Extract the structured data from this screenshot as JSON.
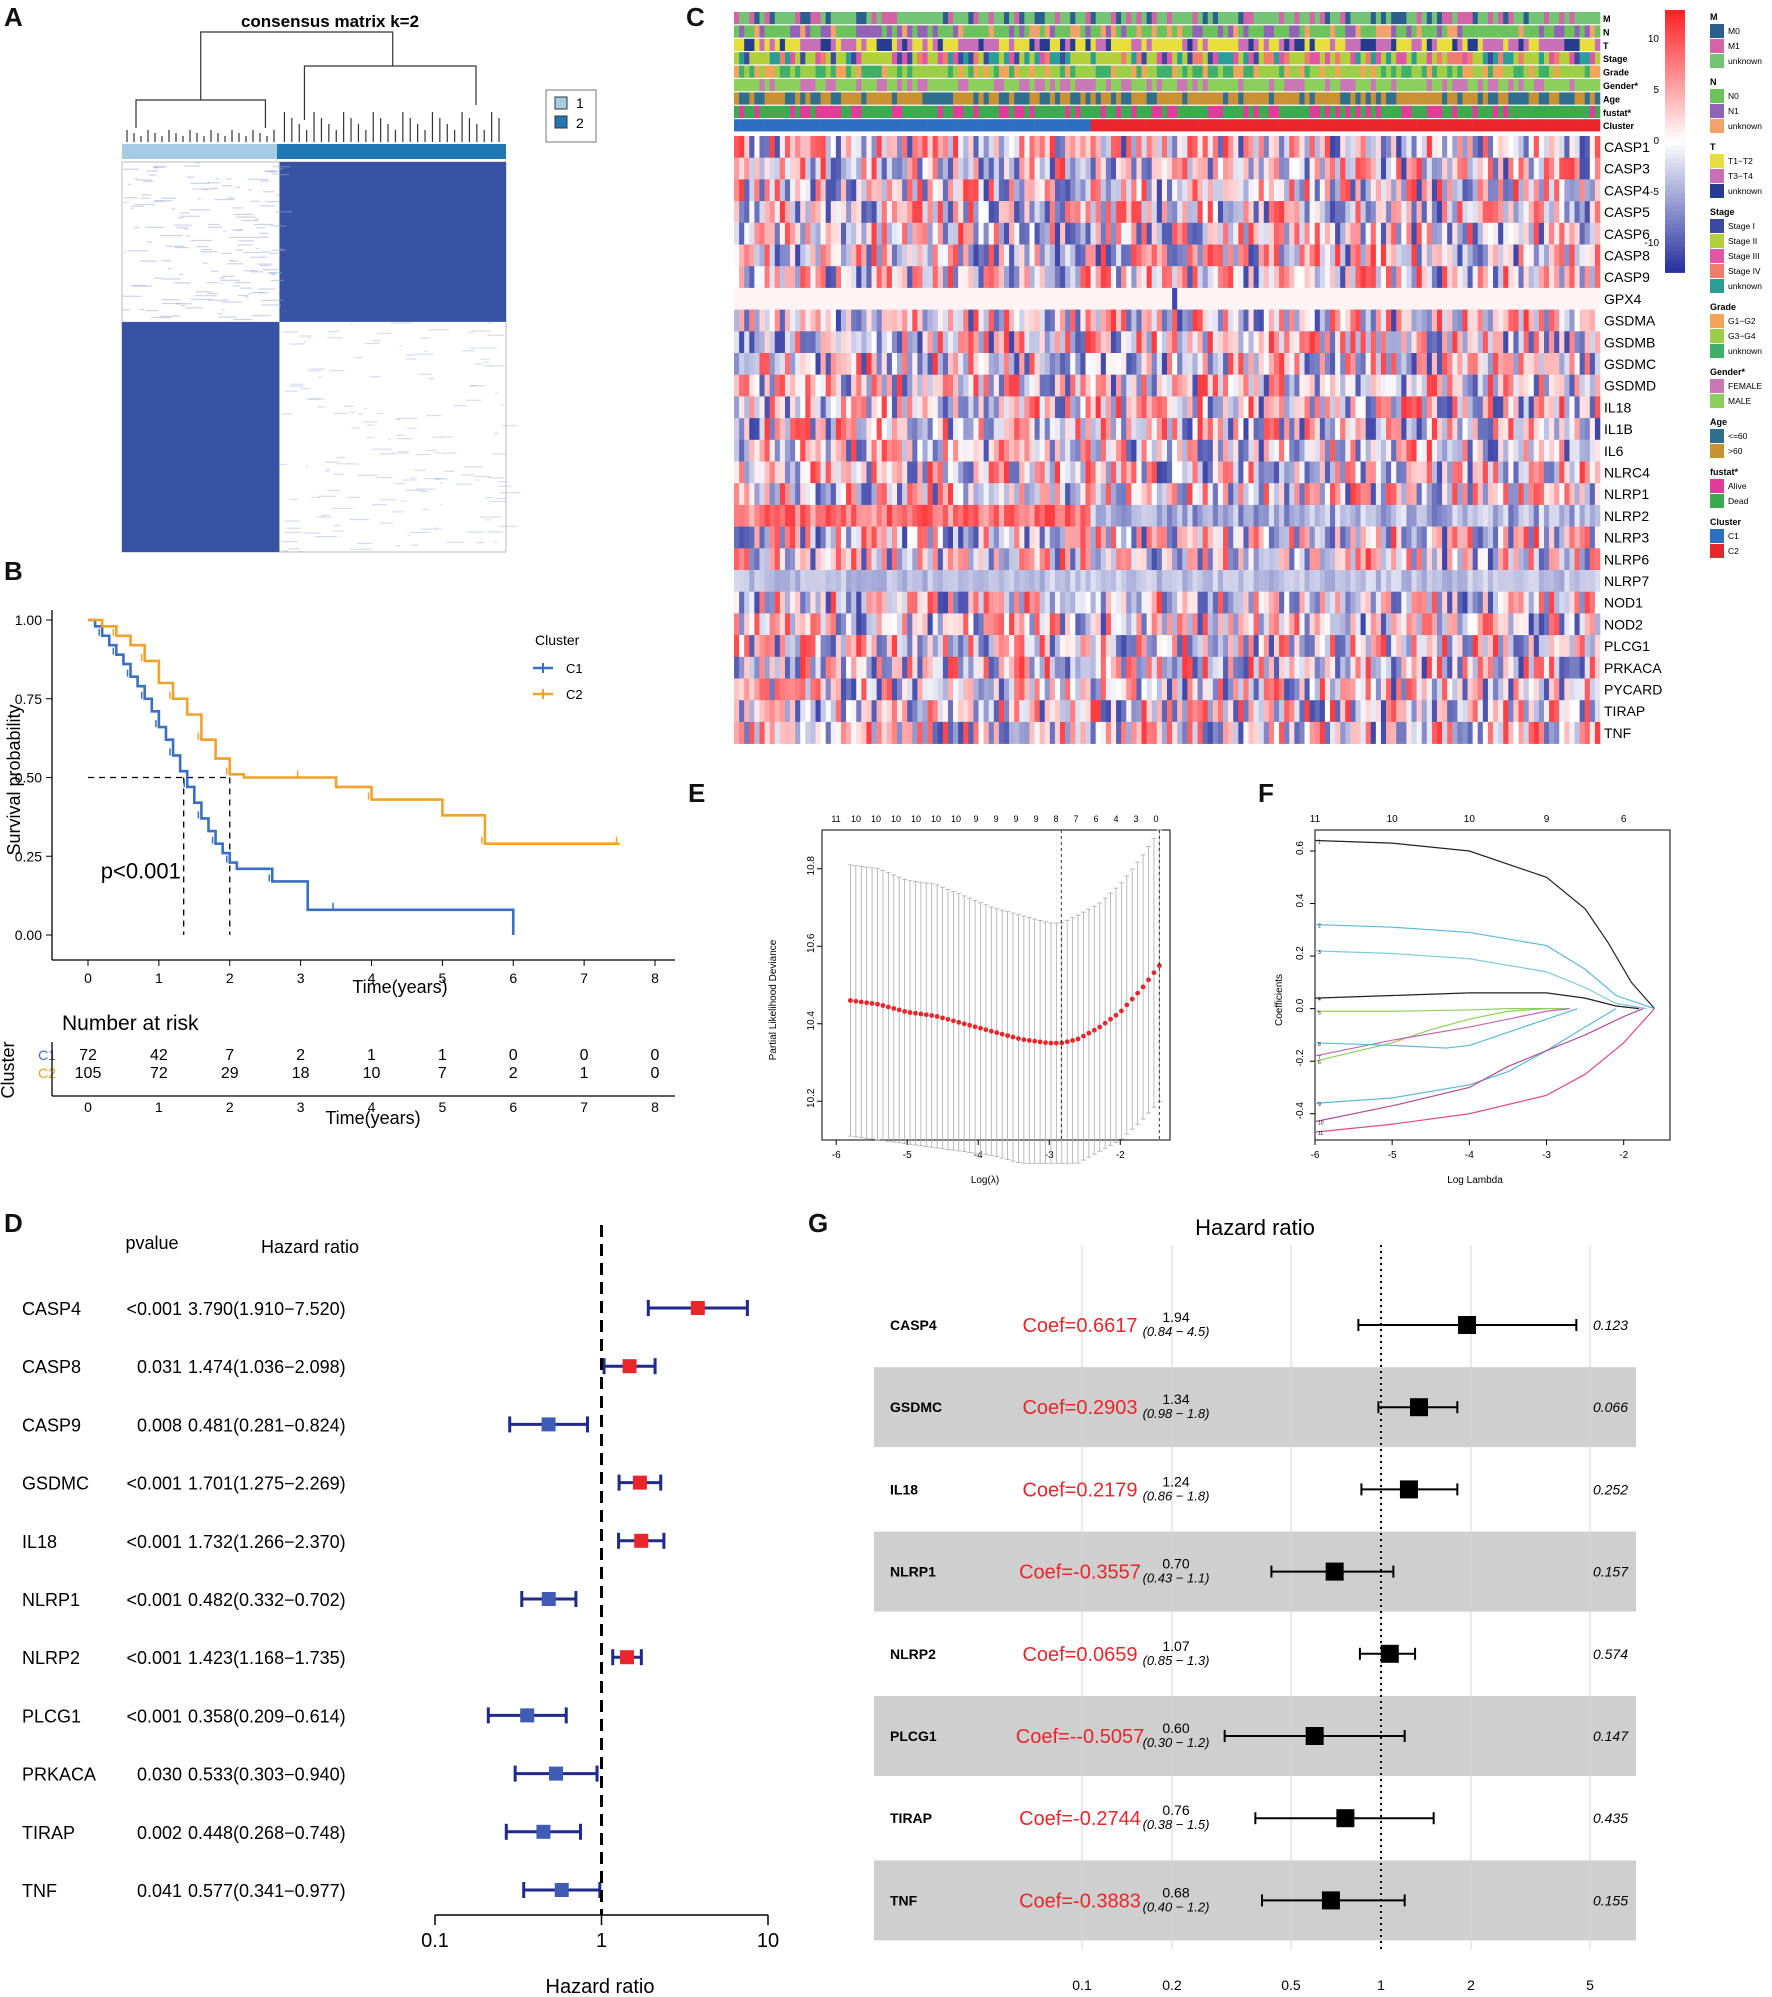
{
  "panels": {
    "A": "A",
    "B": "B",
    "C": "C",
    "D": "D",
    "E": "E",
    "F": "F",
    "G": "G"
  },
  "chart_data": [
    {
      "id": "A",
      "type": "heatmap",
      "title": "consensus matrix k=2",
      "legend": [
        "1",
        "2"
      ],
      "colors": {
        "cluster1": "#a6cce3",
        "cluster2": "#1f78b4",
        "matrix": "#3953a4"
      },
      "blocks": [
        {
          "rows": [
            0,
            0.41
          ],
          "cols": [
            0.41,
            1
          ],
          "value": 1
        },
        {
          "rows": [
            0.41,
            1
          ],
          "cols": [
            0,
            0.41
          ],
          "value": 1
        }
      ]
    },
    {
      "id": "B",
      "type": "line",
      "xlabel": "Time(years)",
      "ylabel": "Survival probability",
      "xlim": [
        0,
        8
      ],
      "ylim": [
        0,
        1
      ],
      "xticks": [
        "0",
        "1",
        "2",
        "3",
        "4",
        "5",
        "6",
        "7",
        "8"
      ],
      "yticks": [
        "0.00",
        "0.25",
        "0.50",
        "0.75",
        "1.00"
      ],
      "legend_title": "Cluster",
      "pvalue_text": "p<0.001",
      "series": [
        {
          "name": "C1",
          "color": "#3a6fc4",
          "x": [
            0,
            0.1,
            0.2,
            0.3,
            0.4,
            0.5,
            0.6,
            0.7,
            0.8,
            0.9,
            1.0,
            1.1,
            1.2,
            1.3,
            1.4,
            1.5,
            1.6,
            1.7,
            1.8,
            1.9,
            2.0,
            2.1,
            2.6,
            3.1,
            3.5,
            6.0
          ],
          "y": [
            1.0,
            0.98,
            0.95,
            0.92,
            0.89,
            0.86,
            0.82,
            0.79,
            0.75,
            0.71,
            0.66,
            0.62,
            0.57,
            0.52,
            0.47,
            0.42,
            0.37,
            0.33,
            0.29,
            0.26,
            0.23,
            0.21,
            0.17,
            0.08,
            0.08,
            0.0
          ]
        },
        {
          "name": "C2",
          "color": "#f0a22b",
          "x": [
            0,
            0.2,
            0.4,
            0.6,
            0.8,
            1.0,
            1.2,
            1.4,
            1.6,
            1.8,
            2.0,
            2.2,
            3.0,
            3.5,
            4.0,
            5.0,
            5.6,
            6.5,
            7.5
          ],
          "y": [
            1.0,
            0.98,
            0.95,
            0.92,
            0.87,
            0.8,
            0.75,
            0.7,
            0.62,
            0.56,
            0.51,
            0.5,
            0.5,
            0.47,
            0.43,
            0.38,
            0.29,
            0.29,
            0.29
          ]
        }
      ],
      "median_lines": [
        {
          "x": 1.35
        },
        {
          "x": 2.0
        }
      ],
      "risk_table": {
        "title": "Number at risk",
        "ylabel": "Cluster",
        "xlabel": "Time(years)",
        "rows": [
          {
            "label": "C1",
            "color": "#3a6fc4",
            "values": [
              "72",
              "42",
              "7",
              "2",
              "1",
              "1",
              "0",
              "0",
              "0"
            ]
          },
          {
            "label": "C2",
            "color": "#f0a22b",
            "values": [
              "105",
              "72",
              "29",
              "18",
              "10",
              "7",
              "2",
              "1",
              "0"
            ]
          }
        ]
      }
    },
    {
      "id": "C",
      "type": "heatmap",
      "genes": [
        "CASP1",
        "CASP3",
        "CASP4",
        "CASP5",
        "CASP6",
        "CASP8",
        "CASP9",
        "GPX4",
        "GSDMA",
        "GSDMB",
        "GSDMC",
        "GSDMD",
        "IL18",
        "IL1B",
        "IL6",
        "NLRC4",
        "NLRP1",
        "NLRP2",
        "NLRP3",
        "NLRP6",
        "NLRP7",
        "NOD1",
        "NOD2",
        "PLCG1",
        "PRKACA",
        "PYCARD",
        "TIRAP",
        "TNF"
      ],
      "annotation_rows": [
        "M",
        "N",
        "T",
        "Stage",
        "Grade",
        "Gender*",
        "Age",
        "fustat*",
        "Cluster"
      ],
      "colorbar_ticks": [
        "10",
        "5",
        "0",
        "-5",
        "-10"
      ],
      "cluster_split": 0.41,
      "legend": [
        {
          "title": "M",
          "items": [
            {
              "label": "M0",
              "color": "#2b5f8f"
            },
            {
              "label": "M1",
              "color": "#d563a8"
            },
            {
              "label": "unknown",
              "color": "#74c476"
            }
          ]
        },
        {
          "title": "N",
          "items": [
            {
              "label": "N0",
              "color": "#6cc25c"
            },
            {
              "label": "N1",
              "color": "#9262b6"
            },
            {
              "label": "unknown",
              "color": "#f2a26a"
            }
          ]
        },
        {
          "title": "T",
          "items": [
            {
              "label": "T1−T2",
              "color": "#e6de3a"
            },
            {
              "label": "T3−T4",
              "color": "#c86fb8"
            },
            {
              "label": "unknown",
              "color": "#263c8f"
            }
          ]
        },
        {
          "title": "Stage",
          "items": [
            {
              "label": "Stage I",
              "color": "#3b4aa0"
            },
            {
              "label": "Stage II",
              "color": "#b2cf3c"
            },
            {
              "label": "Stage III",
              "color": "#e055a4"
            },
            {
              "label": "Stage IV",
              "color": "#f07d6b"
            },
            {
              "label": "unknown",
              "color": "#2a9d96"
            }
          ]
        },
        {
          "title": "Grade",
          "items": [
            {
              "label": "G1−G2",
              "color": "#f4a35a"
            },
            {
              "label": "G3−G4",
              "color": "#9dce47"
            },
            {
              "label": "unknown",
              "color": "#3fb06a"
            }
          ]
        },
        {
          "title": "Gender*",
          "items": [
            {
              "label": "FEMALE",
              "color": "#c977b5"
            },
            {
              "label": "MALE",
              "color": "#8ccf5c"
            }
          ]
        },
        {
          "title": "Age",
          "items": [
            {
              "label": "<=60",
              "color": "#2d6f8c"
            },
            {
              "label": ">60",
              "color": "#c99132"
            }
          ]
        },
        {
          "title": "fustat*",
          "items": [
            {
              "label": "Alive",
              "color": "#e23b9a"
            },
            {
              "label": "Dead",
              "color": "#3caa4f"
            }
          ]
        },
        {
          "title": "Cluster",
          "items": [
            {
              "label": "C1",
              "color": "#2c6fc0"
            },
            {
              "label": "C2",
              "color": "#e8262b"
            }
          ]
        }
      ]
    },
    {
      "id": "D",
      "type": "scatter",
      "columns": {
        "pvalue": "pvalue",
        "hr": "Hazard ratio"
      },
      "xlabel": "Hazard ratio",
      "xticks": [
        "0.1",
        "1",
        "10"
      ],
      "xlim": [
        0.1,
        10
      ],
      "rows": [
        {
          "gene": "CASP4",
          "pvalue": "<0.001",
          "hr_text": "3.790(1.910−7.520)",
          "hr": 3.79,
          "lo": 1.91,
          "hi": 7.52
        },
        {
          "gene": "CASP8",
          "pvalue": "0.031",
          "hr_text": "1.474(1.036−2.098)",
          "hr": 1.474,
          "lo": 1.036,
          "hi": 2.098
        },
        {
          "gene": "CASP9",
          "pvalue": "0.008",
          "hr_text": "0.481(0.281−0.824)",
          "hr": 0.481,
          "lo": 0.281,
          "hi": 0.824
        },
        {
          "gene": "GSDMC",
          "pvalue": "<0.001",
          "hr_text": "1.701(1.275−2.269)",
          "hr": 1.701,
          "lo": 1.275,
          "hi": 2.269
        },
        {
          "gene": "IL18",
          "pvalue": "<0.001",
          "hr_text": "1.732(1.266−2.370)",
          "hr": 1.732,
          "lo": 1.266,
          "hi": 2.37
        },
        {
          "gene": "NLRP1",
          "pvalue": "<0.001",
          "hr_text": "0.482(0.332−0.702)",
          "hr": 0.482,
          "lo": 0.332,
          "hi": 0.702
        },
        {
          "gene": "NLRP2",
          "pvalue": "<0.001",
          "hr_text": "1.423(1.168−1.735)",
          "hr": 1.423,
          "lo": 1.168,
          "hi": 1.735
        },
        {
          "gene": "PLCG1",
          "pvalue": "<0.001",
          "hr_text": "0.358(0.209−0.614)",
          "hr": 0.358,
          "lo": 0.209,
          "hi": 0.614
        },
        {
          "gene": "PRKACA",
          "pvalue": "0.030",
          "hr_text": "0.533(0.303−0.940)",
          "hr": 0.533,
          "lo": 0.303,
          "hi": 0.94
        },
        {
          "gene": "TIRAP",
          "pvalue": "0.002",
          "hr_text": "0.448(0.268−0.748)",
          "hr": 0.448,
          "lo": 0.268,
          "hi": 0.748
        },
        {
          "gene": "TNF",
          "pvalue": "0.041",
          "hr_text": "0.577(0.341−0.977)",
          "hr": 0.577,
          "lo": 0.341,
          "hi": 0.977
        }
      ]
    },
    {
      "id": "E",
      "type": "scatter",
      "xlabel": "Log(λ)",
      "ylabel": "Partial Likelihood Deviance",
      "xticks": [
        "-6",
        "-5",
        "-4",
        "-3",
        "-2"
      ],
      "yticks": [
        "10.2",
        "10.4",
        "10.6",
        "10.8"
      ],
      "top_ticks": [
        "11",
        "10",
        "10",
        "10",
        "10",
        "10",
        "10",
        "9",
        "9",
        "9",
        "9",
        "8",
        "7",
        "6",
        "4",
        "3",
        "0"
      ],
      "xlim": [
        -6.2,
        -1.3
      ],
      "ylim": [
        10.1,
        10.9
      ],
      "vlines": [
        -2.83,
        -1.45
      ],
      "curve": {
        "x": [
          -5.8,
          -5.4,
          -5.0,
          -4.6,
          -4.2,
          -3.8,
          -3.4,
          -3.0,
          -2.83,
          -2.6,
          -2.3,
          -2.0,
          -1.7,
          -1.45
        ],
        "y": [
          10.46,
          10.45,
          10.43,
          10.42,
          10.4,
          10.38,
          10.36,
          10.35,
          10.35,
          10.36,
          10.39,
          10.43,
          10.49,
          10.55
        ],
        "err": [
          0.35,
          0.35,
          0.34,
          0.34,
          0.33,
          0.32,
          0.32,
          0.31,
          0.31,
          0.32,
          0.32,
          0.33,
          0.34,
          0.35
        ]
      }
    },
    {
      "id": "F",
      "type": "line",
      "xlabel": "Log Lambda",
      "ylabel": "Coefficients",
      "xticks": [
        "-6",
        "-5",
        "-4",
        "-3",
        "-2"
      ],
      "yticks": [
        "-0.4",
        "-0.2",
        "0.0",
        "0.2",
        "0.4",
        "0.6"
      ],
      "top_ticks": [
        "11",
        "10",
        "10",
        "9",
        "6"
      ],
      "xlim": [
        -6,
        -1.4
      ],
      "ylim": [
        -0.5,
        0.68
      ],
      "series": [
        {
          "name": "1",
          "color": "#222222",
          "x": [
            -6,
            -5,
            -4,
            -3,
            -2.5,
            -2.2,
            -1.9,
            -1.6
          ],
          "y": [
            0.64,
            0.63,
            0.6,
            0.5,
            0.38,
            0.25,
            0.1,
            0
          ]
        },
        {
          "name": "2",
          "color": "#5bb8d9",
          "x": [
            -6,
            -5,
            -4,
            -3,
            -2.5,
            -2.1,
            -1.6
          ],
          "y": [
            0.32,
            0.31,
            0.29,
            0.24,
            0.15,
            0.05,
            0
          ]
        },
        {
          "name": "3",
          "color": "#7fc9dc",
          "x": [
            -6,
            -5,
            -4,
            -3,
            -2.5,
            -2.1,
            -1.7
          ],
          "y": [
            0.22,
            0.21,
            0.19,
            0.14,
            0.08,
            0.02,
            0
          ]
        },
        {
          "name": "4",
          "color": "#222222",
          "x": [
            -6,
            -5,
            -4,
            -3,
            -2.5,
            -2.1,
            -1.8
          ],
          "y": [
            0.04,
            0.05,
            0.06,
            0.06,
            0.04,
            0.01,
            0
          ]
        },
        {
          "name": "5",
          "color": "#8ccf5c",
          "x": [
            -6,
            -5,
            -4,
            -3.5,
            -2.7
          ],
          "y": [
            -0.01,
            -0.01,
            -0.005,
            0,
            0
          ]
        },
        {
          "name": "6",
          "color": "#8ccf5c",
          "x": [
            -6,
            -5,
            -4.5,
            -4,
            -3.5,
            -3
          ],
          "y": [
            -0.2,
            -0.13,
            -0.08,
            -0.04,
            -0.01,
            0
          ]
        },
        {
          "name": "7",
          "color": "#c466b0",
          "x": [
            -6,
            -5,
            -4,
            -3.5,
            -3,
            -2.7
          ],
          "y": [
            -0.18,
            -0.12,
            -0.07,
            -0.04,
            -0.01,
            0
          ]
        },
        {
          "name": "8",
          "color": "#5bb8d9",
          "x": [
            -6,
            -5,
            -4.3,
            -4,
            -3.5,
            -3,
            -2.6
          ],
          "y": [
            -0.13,
            -0.14,
            -0.15,
            -0.14,
            -0.09,
            -0.04,
            0
          ]
        },
        {
          "name": "9",
          "color": "#5bb8d9",
          "x": [
            -6,
            -5,
            -4,
            -3.5,
            -3,
            -2.5,
            -2.1
          ],
          "y": [
            -0.36,
            -0.34,
            -0.29,
            -0.24,
            -0.16,
            -0.07,
            0
          ]
        },
        {
          "name": "10",
          "color": "#b04f9c",
          "x": [
            -6,
            -5,
            -4,
            -3.5,
            -3,
            -2.5,
            -2,
            -1.75
          ],
          "y": [
            -0.43,
            -0.37,
            -0.3,
            -0.22,
            -0.16,
            -0.1,
            -0.03,
            0
          ]
        },
        {
          "name": "11",
          "color": "#e04c7d",
          "x": [
            -6,
            -5,
            -4,
            -3,
            -2.5,
            -2,
            -1.6
          ],
          "y": [
            -0.47,
            -0.44,
            -0.4,
            -0.33,
            -0.25,
            -0.13,
            0
          ]
        }
      ]
    },
    {
      "id": "G",
      "type": "scatter",
      "title": "Hazard ratio",
      "xticks": [
        "0.1",
        "0.2",
        "0.5",
        "1",
        "2",
        "5"
      ],
      "xlim": [
        0.1,
        5
      ],
      "rows": [
        {
          "gene": "CASP4",
          "coef": "Coef=0.6617",
          "hr_text": "1.94",
          "ci_text": "(0.84 − 4.5)",
          "p": "0.123",
          "hr": 1.94,
          "lo": 0.84,
          "hi": 4.5
        },
        {
          "gene": "GSDMC",
          "coef": "Coef=0.2903",
          "hr_text": "1.34",
          "ci_text": "(0.98 − 1.8)",
          "p": "0.066",
          "hr": 1.34,
          "lo": 0.98,
          "hi": 1.8
        },
        {
          "gene": "IL18",
          "coef": "Coef=0.2179",
          "hr_text": "1.24",
          "ci_text": "(0.86 − 1.8)",
          "p": "0.252",
          "hr": 1.24,
          "lo": 0.86,
          "hi": 1.8
        },
        {
          "gene": "NLRP1",
          "coef": "Coef=-0.3557",
          "hr_text": "0.70",
          "ci_text": "(0.43 − 1.1)",
          "p": "0.157",
          "hr": 0.7,
          "lo": 0.43,
          "hi": 1.1
        },
        {
          "gene": "NLRP2",
          "coef": "Coef=0.0659",
          "hr_text": "1.07",
          "ci_text": "(0.85 − 1.3)",
          "p": "0.574",
          "hr": 1.07,
          "lo": 0.85,
          "hi": 1.3
        },
        {
          "gene": "PLCG1",
          "coef": "Coef=--0.5057",
          "hr_text": "0.60",
          "ci_text": "(0.30 − 1.2)",
          "p": "0.147",
          "hr": 0.6,
          "lo": 0.3,
          "hi": 1.2
        },
        {
          "gene": "TIRAP",
          "coef": "Coef=-0.2744",
          "hr_text": "0.76",
          "ci_text": "(0.38 − 1.5)",
          "p": "0.435",
          "hr": 0.76,
          "lo": 0.38,
          "hi": 1.5
        },
        {
          "gene": "TNF",
          "coef": "Coef=-0.3883",
          "hr_text": "0.68",
          "ci_text": "(0.40 − 1.2)",
          "p": "0.155",
          "hr": 0.68,
          "lo": 0.4,
          "hi": 1.2
        }
      ]
    }
  ]
}
